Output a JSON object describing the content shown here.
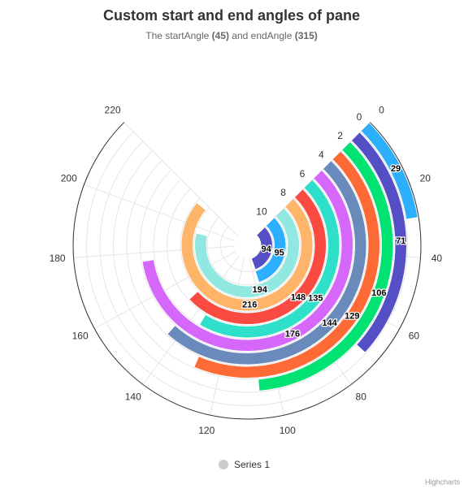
{
  "chart_data": {
    "type": "bar",
    "polar": true,
    "inverted": true,
    "title": "Custom start and end angles of pane",
    "subtitle": [
      "The startAngle ",
      "(45)",
      " and endAngle ",
      "(315)"
    ],
    "start_angle": 45,
    "end_angle": 315,
    "categories": [
      0,
      null,
      2,
      null,
      4,
      null,
      6,
      null,
      8,
      null,
      10,
      null
    ],
    "ylim": [
      0,
      220
    ],
    "yticks": [
      0,
      20,
      40,
      60,
      80,
      100,
      120,
      140,
      160,
      180,
      200,
      220
    ],
    "grid": true,
    "series": [
      {
        "name": "Series 1",
        "color": "#cccccc",
        "values": [
          29,
          71,
          106,
          129,
          144,
          176,
          135,
          148,
          216,
          194,
          95,
          94
        ],
        "colors": [
          "#2caffe",
          "#544fc5",
          "#00e272",
          "#fe6a35",
          "#6b8abc",
          "#d568fb",
          "#2ee0ca",
          "#fa4b42",
          "#feb56a",
          "#91e8e1",
          "#2caffe",
          "#544fc5"
        ]
      }
    ],
    "credits": "Highcharts"
  }
}
